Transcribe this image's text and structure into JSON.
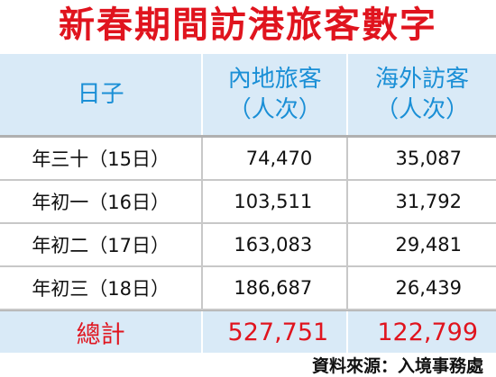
{
  "title": "新春期間訪港旅客數字",
  "table": {
    "header": [
      [
        "日子"
      ],
      [
        "內地旅客",
        "（人次）"
      ],
      [
        "海外訪客",
        "（人次）"
      ]
    ],
    "rows": [
      [
        "年三十（15日）",
        "74,470",
        "35,087"
      ],
      [
        "年初一（16日）",
        "103,511",
        "31,792"
      ],
      [
        "年初二（17日）",
        "163,083",
        "29,481"
      ],
      [
        "年初三（18日）",
        "186,687",
        "26,439"
      ]
    ],
    "total": [
      "總計",
      "527,751",
      "122,799"
    ]
  },
  "source": "資料來源：入境事務處"
}
